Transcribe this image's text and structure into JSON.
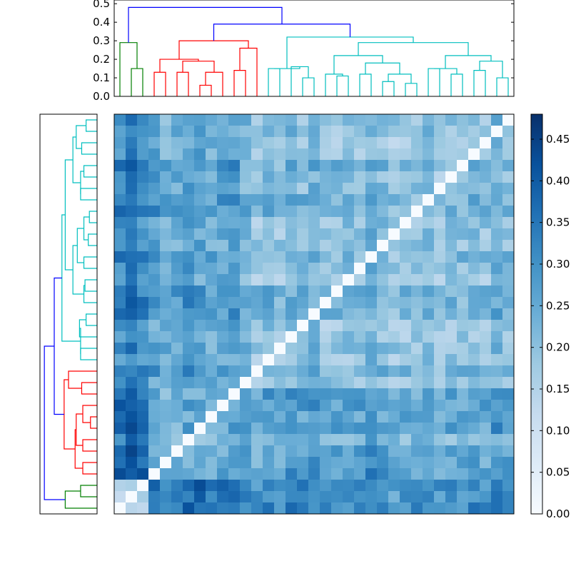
{
  "chart_data": [
    {
      "type": "dendrogram",
      "orientation": "top",
      "ylim": [
        0,
        0.52
      ],
      "yticks": [
        "0.0",
        "0.1",
        "0.2",
        "0.3",
        "0.4",
        "0.5"
      ],
      "leaf_count": 35,
      "clusters": [
        {
          "color": "#007f00",
          "leaves": [
            0,
            1,
            2
          ]
        },
        {
          "color": "#ff0000",
          "leaves": [
            3,
            10
          ]
        },
        {
          "color": "#00bfbf",
          "leaves": [
            11,
            34
          ]
        }
      ],
      "link_color": "#0000ff",
      "root_height": 0.48,
      "merge_heights": {
        "green_vs_rest": 0.48,
        "red_vs_cyan": 0.39
      }
    },
    {
      "type": "dendrogram",
      "orientation": "left",
      "leaf_count": 35,
      "clusters": [
        {
          "color": "#007f00",
          "leaves": [
            0,
            2
          ]
        },
        {
          "color": "#ff0000",
          "leaves": [
            3,
            10
          ]
        },
        {
          "color": "#00bfbf",
          "leaves": [
            11,
            34
          ]
        }
      ],
      "link_color": "#0000ff"
    },
    {
      "type": "heatmap",
      "rows": 35,
      "cols": 35,
      "colormap": "Blues",
      "value_range": [
        0,
        0.48
      ],
      "diagonal": 0.0,
      "colorbar": {
        "ticks": [
          "0.00",
          "0.05",
          "0.10",
          "0.15",
          "0.20",
          "0.25",
          "0.30",
          "0.35",
          "0.40",
          "0.45"
        ],
        "vmin": 0.0,
        "vmax": 0.48
      }
    }
  ]
}
